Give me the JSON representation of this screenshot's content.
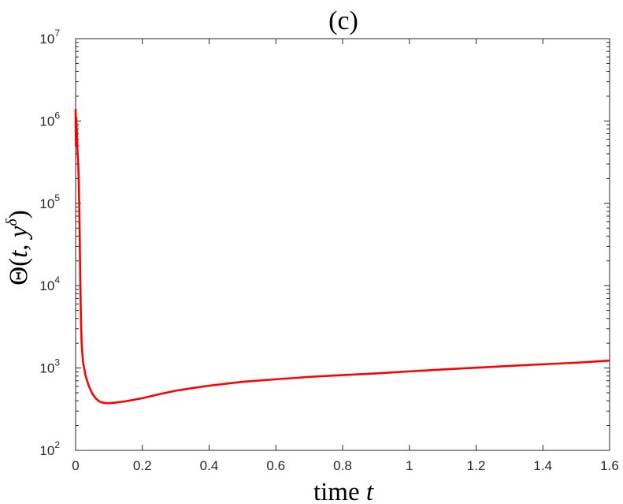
{
  "chart_data": {
    "type": "line",
    "title": "(c)",
    "xlabel": {
      "text": "time ",
      "var": "t"
    },
    "ylabel": {
      "main": "Θ(",
      "t": "t",
      "comma": ", ",
      "y": "y",
      "sup": "δ",
      "close": ")"
    },
    "xlim": [
      0,
      1.6
    ],
    "ylim": [
      100,
      10000000
    ],
    "yscale": "log",
    "grid": false,
    "x_ticks": [
      {
        "value": 0,
        "label": "0"
      },
      {
        "value": 0.2,
        "label": "0.2"
      },
      {
        "value": 0.4,
        "label": "0.4"
      },
      {
        "value": 0.6,
        "label": "0.6"
      },
      {
        "value": 0.8,
        "label": "0.8"
      },
      {
        "value": 1.0,
        "label": "1"
      },
      {
        "value": 1.2,
        "label": "1.2"
      },
      {
        "value": 1.4,
        "label": "1.4"
      },
      {
        "value": 1.6,
        "label": "1.6"
      }
    ],
    "y_ticks": [
      {
        "value": 100,
        "base": "10",
        "exp": "2"
      },
      {
        "value": 1000,
        "base": "10",
        "exp": "3"
      },
      {
        "value": 10000,
        "base": "10",
        "exp": "4"
      },
      {
        "value": 100000,
        "base": "10",
        "exp": "5"
      },
      {
        "value": 1000000,
        "base": "10",
        "exp": "6"
      },
      {
        "value": 10000000,
        "base": "10",
        "exp": "7"
      }
    ],
    "series": [
      {
        "color": "#ff0000",
        "points": [
          [
            0.0,
            1400000
          ],
          [
            0.001,
            500000
          ],
          [
            0.002,
            1100000
          ],
          [
            0.004,
            700000
          ],
          [
            0.006,
            400000
          ],
          [
            0.008,
            300000
          ],
          [
            0.01,
            150000
          ],
          [
            0.012,
            50000
          ],
          [
            0.014,
            12000
          ],
          [
            0.016,
            4000
          ],
          [
            0.018,
            2000
          ],
          [
            0.022,
            1200
          ],
          [
            0.03,
            800
          ],
          [
            0.04,
            600
          ],
          [
            0.05,
            490
          ],
          [
            0.06,
            430
          ],
          [
            0.07,
            395
          ],
          [
            0.08,
            380
          ],
          [
            0.09,
            375
          ],
          [
            0.1,
            374
          ],
          [
            0.12,
            380
          ],
          [
            0.15,
            395
          ],
          [
            0.2,
            430
          ],
          [
            0.25,
            480
          ],
          [
            0.3,
            530
          ],
          [
            0.35,
            570
          ],
          [
            0.4,
            610
          ],
          [
            0.5,
            680
          ],
          [
            0.6,
            730
          ],
          [
            0.7,
            780
          ],
          [
            0.8,
            820
          ],
          [
            0.9,
            860
          ],
          [
            1.0,
            910
          ],
          [
            1.1,
            960
          ],
          [
            1.2,
            1010
          ],
          [
            1.3,
            1060
          ],
          [
            1.4,
            1110
          ],
          [
            1.5,
            1160
          ],
          [
            1.6,
            1230
          ]
        ]
      }
    ]
  }
}
